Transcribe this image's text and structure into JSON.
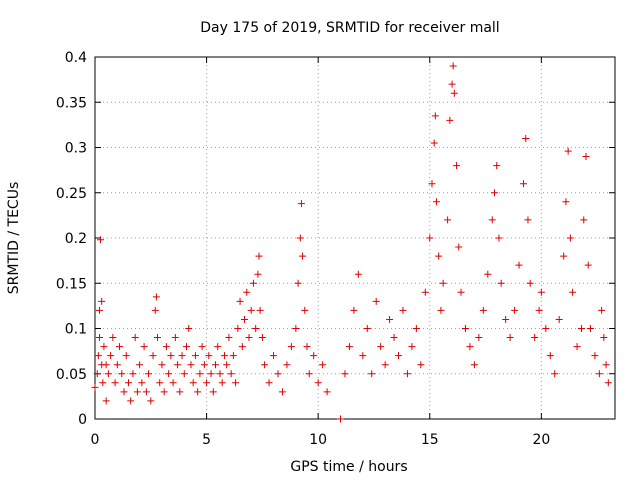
{
  "chart_data": {
    "type": "scatter",
    "title": "Day 175 of 2019, SRMTID for receiver mall",
    "xlabel": "GPS time / hours",
    "ylabel": "SRMTID / TECUs",
    "xlim": [
      0,
      23.3
    ],
    "ylim": [
      0,
      0.4
    ],
    "xticks": [
      0,
      5,
      10,
      15,
      20
    ],
    "yticks": [
      0,
      0.05,
      0.1,
      0.15,
      0.2,
      0.25,
      0.3,
      0.35,
      0.4
    ],
    "xtick_labels": [
      "0",
      "5",
      "10",
      "15",
      "20"
    ],
    "ytick_labels": [
      "0",
      "0.05",
      "0.1",
      "0.15",
      "0.2",
      "0.25",
      "0.3",
      "0.35",
      "0.4"
    ],
    "grid": true,
    "marker": "+",
    "color": "#e00000",
    "series": [
      {
        "name": "SRMTID",
        "points": [
          [
            0.0,
            0.035
          ],
          [
            0.1,
            0.05
          ],
          [
            0.15,
            0.07
          ],
          [
            0.2,
            0.09
          ],
          [
            0.2,
            0.12
          ],
          [
            0.25,
            0.198
          ],
          [
            0.3,
            0.13
          ],
          [
            0.3,
            0.06
          ],
          [
            0.35,
            0.04
          ],
          [
            0.4,
            0.08
          ],
          [
            0.5,
            0.06
          ],
          [
            0.5,
            0.02
          ],
          [
            0.6,
            0.05
          ],
          [
            0.7,
            0.07
          ],
          [
            0.8,
            0.09
          ],
          [
            0.9,
            0.04
          ],
          [
            1.0,
            0.06
          ],
          [
            1.1,
            0.08
          ],
          [
            1.2,
            0.05
          ],
          [
            1.3,
            0.03
          ],
          [
            1.4,
            0.07
          ],
          [
            1.5,
            0.04
          ],
          [
            1.6,
            0.02
          ],
          [
            1.7,
            0.05
          ],
          [
            1.8,
            0.09
          ],
          [
            1.9,
            0.03
          ],
          [
            2.0,
            0.06
          ],
          [
            2.1,
            0.04
          ],
          [
            2.2,
            0.08
          ],
          [
            2.3,
            0.03
          ],
          [
            2.4,
            0.05
          ],
          [
            2.5,
            0.02
          ],
          [
            2.6,
            0.07
          ],
          [
            2.7,
            0.12
          ],
          [
            2.75,
            0.135
          ],
          [
            2.8,
            0.09
          ],
          [
            2.9,
            0.04
          ],
          [
            3.0,
            0.06
          ],
          [
            3.1,
            0.03
          ],
          [
            3.2,
            0.08
          ],
          [
            3.3,
            0.05
          ],
          [
            3.4,
            0.07
          ],
          [
            3.5,
            0.04
          ],
          [
            3.6,
            0.09
          ],
          [
            3.7,
            0.06
          ],
          [
            3.8,
            0.03
          ],
          [
            3.9,
            0.07
          ],
          [
            4.0,
            0.05
          ],
          [
            4.1,
            0.08
          ],
          [
            4.2,
            0.1
          ],
          [
            4.3,
            0.06
          ],
          [
            4.4,
            0.04
          ],
          [
            4.5,
            0.07
          ],
          [
            4.6,
            0.03
          ],
          [
            4.7,
            0.05
          ],
          [
            4.8,
            0.08
          ],
          [
            4.9,
            0.06
          ],
          [
            5.0,
            0.04
          ],
          [
            5.1,
            0.07
          ],
          [
            5.2,
            0.05
          ],
          [
            5.3,
            0.03
          ],
          [
            5.4,
            0.06
          ],
          [
            5.5,
            0.08
          ],
          [
            5.6,
            0.05
          ],
          [
            5.7,
            0.04
          ],
          [
            5.8,
            0.07
          ],
          [
            5.9,
            0.06
          ],
          [
            6.0,
            0.09
          ],
          [
            6.1,
            0.05
          ],
          [
            6.2,
            0.07
          ],
          [
            6.3,
            0.04
          ],
          [
            6.4,
            0.1
          ],
          [
            6.5,
            0.13
          ],
          [
            6.6,
            0.08
          ],
          [
            6.7,
            0.11
          ],
          [
            6.8,
            0.14
          ],
          [
            6.9,
            0.09
          ],
          [
            7.0,
            0.12
          ],
          [
            7.1,
            0.15
          ],
          [
            7.2,
            0.1
          ],
          [
            7.3,
            0.16
          ],
          [
            7.35,
            0.18
          ],
          [
            7.4,
            0.12
          ],
          [
            7.5,
            0.09
          ],
          [
            7.6,
            0.06
          ],
          [
            7.8,
            0.04
          ],
          [
            8.0,
            0.07
          ],
          [
            8.2,
            0.05
          ],
          [
            8.4,
            0.03
          ],
          [
            8.6,
            0.06
          ],
          [
            8.8,
            0.08
          ],
          [
            9.0,
            0.1
          ],
          [
            9.1,
            0.15
          ],
          [
            9.2,
            0.2
          ],
          [
            9.25,
            0.238
          ],
          [
            9.3,
            0.18
          ],
          [
            9.4,
            0.12
          ],
          [
            9.5,
            0.08
          ],
          [
            9.6,
            0.05
          ],
          [
            9.8,
            0.07
          ],
          [
            10.0,
            0.04
          ],
          [
            10.2,
            0.06
          ],
          [
            10.4,
            0.03
          ],
          [
            11.0,
            0.0
          ],
          [
            11.2,
            0.05
          ],
          [
            11.4,
            0.08
          ],
          [
            11.6,
            0.12
          ],
          [
            11.8,
            0.16
          ],
          [
            12.0,
            0.07
          ],
          [
            12.2,
            0.1
          ],
          [
            12.4,
            0.05
          ],
          [
            12.6,
            0.13
          ],
          [
            12.8,
            0.08
          ],
          [
            13.0,
            0.06
          ],
          [
            13.2,
            0.11
          ],
          [
            13.4,
            0.09
          ],
          [
            13.6,
            0.07
          ],
          [
            13.8,
            0.12
          ],
          [
            14.0,
            0.05
          ],
          [
            14.2,
            0.08
          ],
          [
            14.4,
            0.1
          ],
          [
            14.6,
            0.06
          ],
          [
            14.8,
            0.14
          ],
          [
            15.0,
            0.2
          ],
          [
            15.1,
            0.26
          ],
          [
            15.2,
            0.305
          ],
          [
            15.25,
            0.335
          ],
          [
            15.3,
            0.24
          ],
          [
            15.4,
            0.18
          ],
          [
            15.5,
            0.12
          ],
          [
            15.6,
            0.15
          ],
          [
            15.8,
            0.22
          ],
          [
            15.9,
            0.33
          ],
          [
            16.0,
            0.37
          ],
          [
            16.05,
            0.39
          ],
          [
            16.1,
            0.36
          ],
          [
            16.2,
            0.28
          ],
          [
            16.3,
            0.19
          ],
          [
            16.4,
            0.14
          ],
          [
            16.6,
            0.1
          ],
          [
            16.8,
            0.08
          ],
          [
            17.0,
            0.06
          ],
          [
            17.2,
            0.09
          ],
          [
            17.4,
            0.12
          ],
          [
            17.6,
            0.16
          ],
          [
            17.8,
            0.22
          ],
          [
            17.9,
            0.25
          ],
          [
            18.0,
            0.28
          ],
          [
            18.1,
            0.2
          ],
          [
            18.2,
            0.15
          ],
          [
            18.4,
            0.11
          ],
          [
            18.6,
            0.09
          ],
          [
            18.8,
            0.12
          ],
          [
            19.0,
            0.17
          ],
          [
            19.2,
            0.26
          ],
          [
            19.3,
            0.31
          ],
          [
            19.4,
            0.22
          ],
          [
            19.5,
            0.15
          ],
          [
            19.7,
            0.09
          ],
          [
            19.9,
            0.12
          ],
          [
            20.0,
            0.14
          ],
          [
            20.2,
            0.1
          ],
          [
            20.4,
            0.07
          ],
          [
            20.6,
            0.05
          ],
          [
            20.8,
            0.11
          ],
          [
            21.0,
            0.18
          ],
          [
            21.1,
            0.24
          ],
          [
            21.2,
            0.296
          ],
          [
            21.3,
            0.2
          ],
          [
            21.4,
            0.14
          ],
          [
            21.6,
            0.08
          ],
          [
            21.8,
            0.1
          ],
          [
            21.9,
            0.22
          ],
          [
            22.0,
            0.29
          ],
          [
            22.1,
            0.17
          ],
          [
            22.2,
            0.1
          ],
          [
            22.4,
            0.07
          ],
          [
            22.6,
            0.05
          ],
          [
            22.7,
            0.12
          ],
          [
            22.8,
            0.09
          ],
          [
            22.9,
            0.06
          ],
          [
            23.0,
            0.04
          ]
        ]
      }
    ]
  }
}
